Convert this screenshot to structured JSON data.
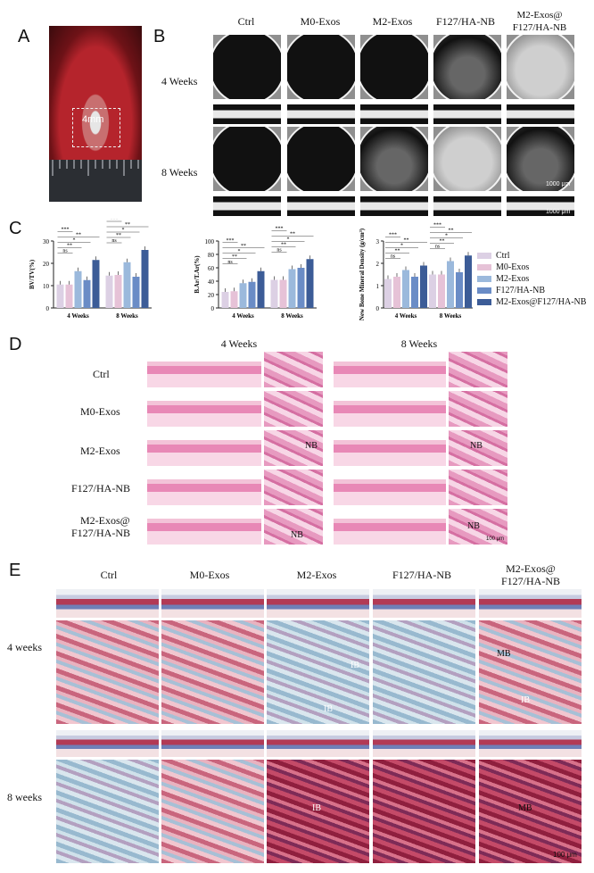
{
  "panel_labels": {
    "A": "A",
    "B": "B",
    "C": "C",
    "D": "D",
    "E": "E"
  },
  "panel_a": {
    "scale_text": "4mm"
  },
  "panel_b": {
    "columns": [
      "Ctrl",
      "M0-Exos",
      "M2-Exos",
      "F127/HA-NB",
      "M2-Exos@",
      "F127/HA-NB"
    ],
    "rows": [
      "4 Weeks",
      "8 Weeks"
    ],
    "scale_bar_1": "1000 μm",
    "scale_bar_2": "1000 μm"
  },
  "panel_c": {
    "legend": [
      "Ctrl",
      "M0-Exos",
      "M2-Exos",
      "F127/HA-NB",
      "M2-Exos@F127/HA-NB"
    ],
    "colors": {
      "ctrl": "#dcd0e4",
      "m0": "#e6c2d7",
      "m2": "#9bb9dc",
      "f127": "#6a8cc6",
      "combo": "#3c5c97"
    },
    "sig": {
      "ns": "ns",
      "s1": "*",
      "s2": "**",
      "s3": "***"
    }
  },
  "chart_data": [
    {
      "type": "bar",
      "categories": [
        "4 Weeks",
        "8 Weeks"
      ],
      "ylabel": "BV/TV(%)",
      "ylim": [
        0,
        30
      ],
      "yticks": [
        "0",
        "10",
        "20",
        "30"
      ],
      "series": [
        {
          "name": "Ctrl",
          "values": [
            10.5,
            14.5
          ]
        },
        {
          "name": "M0-Exos",
          "values": [
            10.5,
            14.8
          ]
        },
        {
          "name": "M2-Exos",
          "values": [
            16.5,
            20.5
          ]
        },
        {
          "name": "F127/HA-NB",
          "values": [
            12.5,
            14
          ]
        },
        {
          "name": "M2-Exos@F127/HA-NB",
          "values": [
            21.5,
            26
          ]
        }
      ]
    },
    {
      "type": "bar",
      "categories": [
        "4 Weeks",
        "8 Weeks"
      ],
      "ylabel": "B.Ar/T.Ar(%)",
      "ylim": [
        0,
        100
      ],
      "yticks": [
        "0",
        "20",
        "40",
        "60",
        "80",
        "100"
      ],
      "series": [
        {
          "name": "Ctrl",
          "values": [
            24,
            42
          ]
        },
        {
          "name": "M0-Exos",
          "values": [
            25,
            42
          ]
        },
        {
          "name": "M2-Exos",
          "values": [
            37,
            58
          ]
        },
        {
          "name": "F127/HA-NB",
          "values": [
            39,
            60
          ]
        },
        {
          "name": "M2-Exos@F127/HA-NB",
          "values": [
            55,
            73
          ]
        }
      ]
    },
    {
      "type": "bar",
      "categories": [
        "4 Weeks",
        "8 Weeks"
      ],
      "ylabel": "New Bone Mineral Density (g/cm³)",
      "ylim": [
        0,
        3
      ],
      "yticks": [
        "0",
        "1",
        "2",
        "3"
      ],
      "series": [
        {
          "name": "Ctrl",
          "values": [
            1.3,
            1.5
          ]
        },
        {
          "name": "M0-Exos",
          "values": [
            1.4,
            1.5
          ]
        },
        {
          "name": "M2-Exos",
          "values": [
            1.7,
            2.1
          ]
        },
        {
          "name": "F127/HA-NB",
          "values": [
            1.4,
            1.6
          ]
        },
        {
          "name": "M2-Exos@F127/HA-NB",
          "values": [
            1.9,
            2.35
          ]
        }
      ]
    }
  ],
  "panel_d": {
    "rows": [
      "Ctrl",
      "M0-Exos",
      "M2-Exos",
      "F127/HA-NB",
      "M2-Exos@",
      "F127/HA-NB"
    ],
    "cols": [
      "4 Weeks",
      "8 Weeks"
    ],
    "nb": "NB",
    "scale_bar": "100 μm"
  },
  "panel_e": {
    "cols": [
      "Ctrl",
      "M0-Exos",
      "M2-Exos",
      "F127/HA-NB",
      "M2-Exos@",
      "F127/HA-NB"
    ],
    "rows": [
      "4 weeks",
      "8 weeks"
    ],
    "labels": {
      "ib": "IB",
      "mb": "MB"
    },
    "scale_bar": "100 μm"
  }
}
